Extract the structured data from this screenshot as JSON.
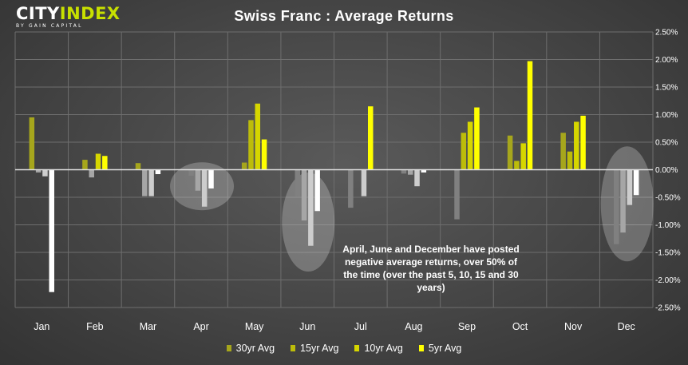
{
  "header": {
    "logo_main": "CITY",
    "logo_accent": "INDEX",
    "logo_sub": "BY GAIN CAPITAL",
    "title": "Swiss Franc : Average Returns"
  },
  "annotation": "April, June and December have posted negative average returns, over 50% of the time (over the past 5, 10, 15 and 30 years)",
  "colors": {
    "positive": [
      "#a6a61c",
      "#bcbc0a",
      "#d6d600",
      "#ffff00"
    ],
    "negative": [
      "#808080",
      "#a6a6a6",
      "#cdcdcd",
      "#ffffff"
    ],
    "highlight": "#e6e6e6"
  },
  "chart_data": {
    "type": "bar",
    "title": "Swiss Franc : Average Returns",
    "categories": [
      "Jan",
      "Feb",
      "Mar",
      "Apr",
      "May",
      "Jun",
      "Jul",
      "Aug",
      "Sep",
      "Oct",
      "Nov",
      "Dec"
    ],
    "series": [
      {
        "name": "30yr Avg",
        "values": [
          0.95,
          0.18,
          0.12,
          -0.11,
          0.13,
          -0.48,
          -0.69,
          -0.07,
          -0.9,
          0.62,
          0.67,
          -1.35
        ]
      },
      {
        "name": "15yr Avg",
        "values": [
          -0.05,
          -0.14,
          -0.48,
          -0.38,
          0.9,
          -0.92,
          0.0,
          -0.09,
          0.67,
          0.16,
          0.33,
          -1.14
        ]
      },
      {
        "name": "10yr Avg",
        "values": [
          -0.12,
          0.29,
          -0.48,
          -0.67,
          1.2,
          -1.38,
          -0.48,
          -0.3,
          0.87,
          0.48,
          0.87,
          -0.64
        ]
      },
      {
        "name": "5yr Avg",
        "values": [
          -2.22,
          0.25,
          -0.08,
          -0.34,
          0.55,
          -0.75,
          1.15,
          -0.05,
          1.13,
          1.97,
          0.98,
          -0.46
        ]
      }
    ],
    "ylim": [
      -2.5,
      2.5
    ],
    "yticks": [
      "2.50%",
      "2.00%",
      "1.50%",
      "1.00%",
      "0.50%",
      "0.00%",
      "-0.50%",
      "-1.00%",
      "-1.50%",
      "-2.00%",
      "-2.50%"
    ],
    "ytick_values": [
      2.5,
      2.0,
      1.5,
      1.0,
      0.5,
      0.0,
      -0.5,
      -1.0,
      -1.5,
      -2.0,
      -2.5
    ],
    "highlighted_months": [
      "Apr",
      "Jun",
      "Dec"
    ],
    "grid": true,
    "legend_position": "bottom"
  }
}
